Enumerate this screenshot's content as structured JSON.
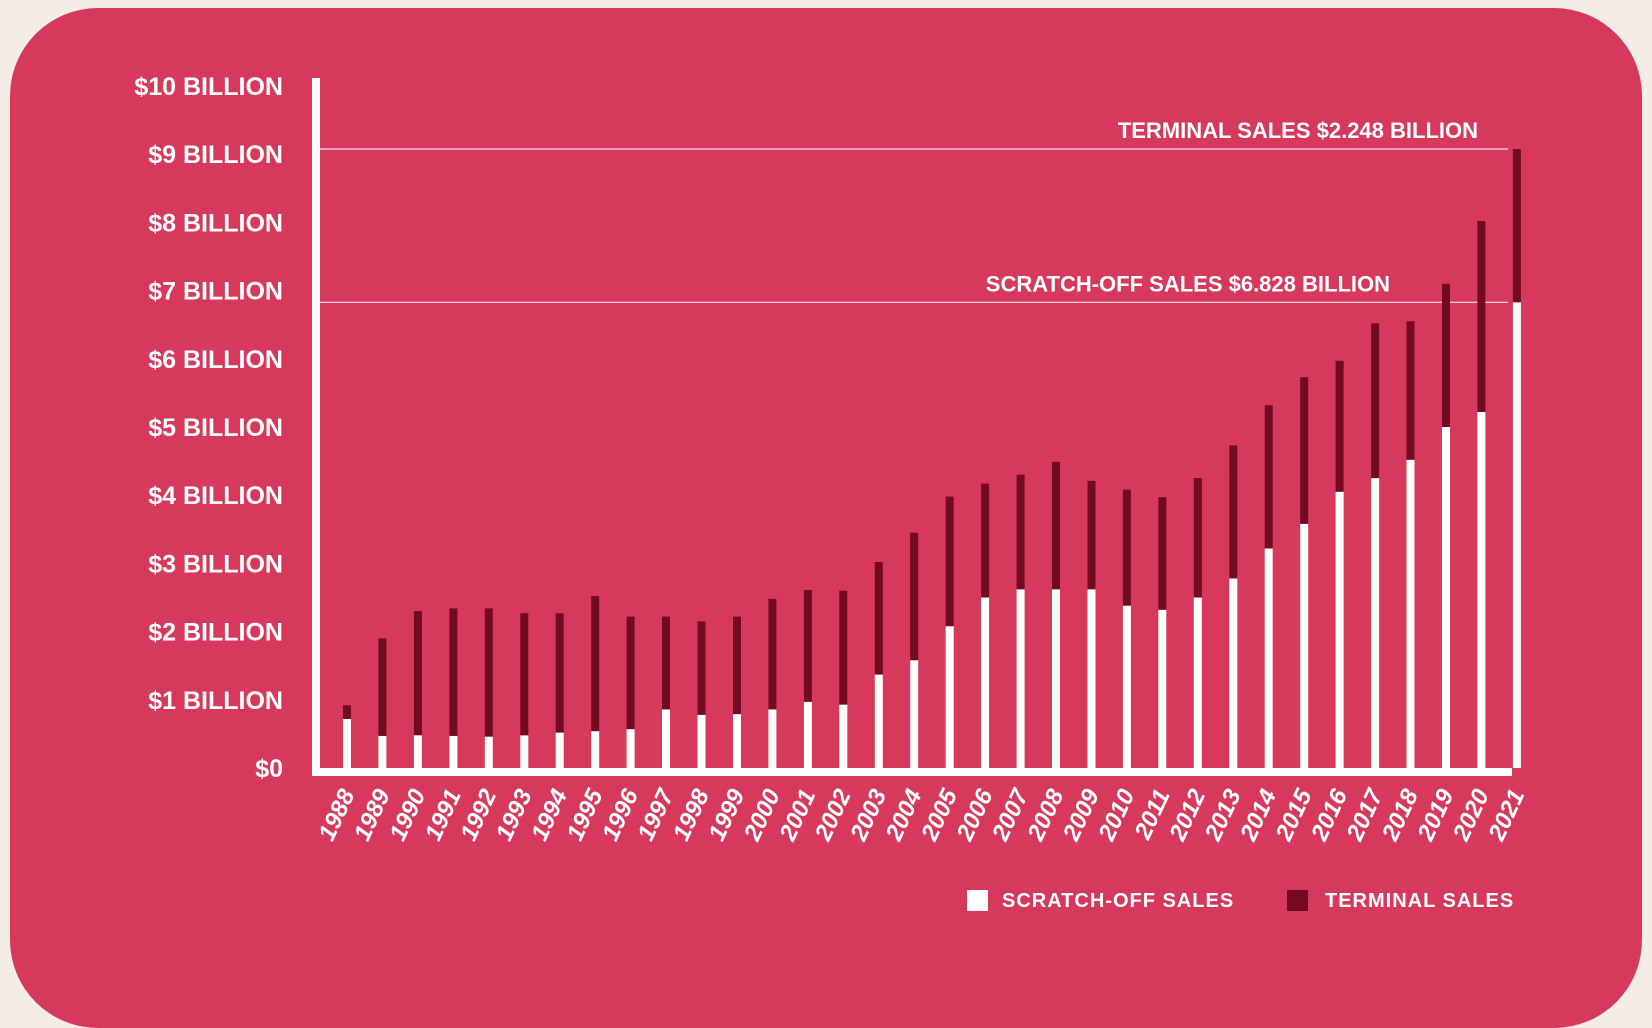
{
  "colors": {
    "background": "#d6395b",
    "scratch": "#ffffff",
    "terminal": "#720b1e",
    "axis": "#ffffff"
  },
  "chart_data": {
    "type": "bar",
    "stacked": true,
    "title": "",
    "xlabel": "",
    "ylabel": "",
    "ylim": [
      0,
      10
    ],
    "grid": false,
    "legend_position": "bottom-right",
    "y_tick_labels": [
      "$0",
      "$1 BILLION",
      "$2 BILLION",
      "$3 BILLION",
      "$4 BILLION",
      "$5 BILLION",
      "$6 BILLION",
      "$7 BILLION",
      "$8 BILLION",
      "$9 BILLION",
      "$10 BILLION"
    ],
    "categories": [
      "1988",
      "1989",
      "1990",
      "1991",
      "1992",
      "1993",
      "1994",
      "1995",
      "1996",
      "1997",
      "1998",
      "1999",
      "2000",
      "2001",
      "2002",
      "2003",
      "2004",
      "2005",
      "2006",
      "2007",
      "2008",
      "2009",
      "2010",
      "2011",
      "2012",
      "2013",
      "2014",
      "2015",
      "2016",
      "2017",
      "2018",
      "2019",
      "2020",
      "2021"
    ],
    "series": [
      {
        "name": "SCRATCH-OFF SALES",
        "values": [
          0.72,
          0.47,
          0.48,
          0.47,
          0.46,
          0.48,
          0.52,
          0.54,
          0.57,
          0.86,
          0.78,
          0.79,
          0.86,
          0.97,
          0.93,
          1.37,
          1.58,
          2.08,
          2.5,
          2.62,
          2.62,
          2.62,
          2.38,
          2.32,
          2.5,
          2.78,
          3.22,
          3.58,
          4.05,
          4.25,
          4.52,
          5.0,
          5.22,
          6.828
        ]
      },
      {
        "name": "TERMINAL SALES",
        "values": [
          0.2,
          1.43,
          1.82,
          1.87,
          1.88,
          1.79,
          1.75,
          1.98,
          1.65,
          1.36,
          1.37,
          1.43,
          1.62,
          1.64,
          1.67,
          1.65,
          1.87,
          1.9,
          1.67,
          1.68,
          1.87,
          1.59,
          1.7,
          1.65,
          1.75,
          1.95,
          2.1,
          2.15,
          1.92,
          2.27,
          2.03,
          2.1,
          2.8,
          2.248
        ]
      }
    ],
    "annotations": [
      {
        "text": "TERMINAL SALES $2.248 BILLION",
        "y": 9.076
      },
      {
        "text": "SCRATCH-OFF SALES $6.828 BILLION",
        "y": 6.828
      }
    ]
  }
}
